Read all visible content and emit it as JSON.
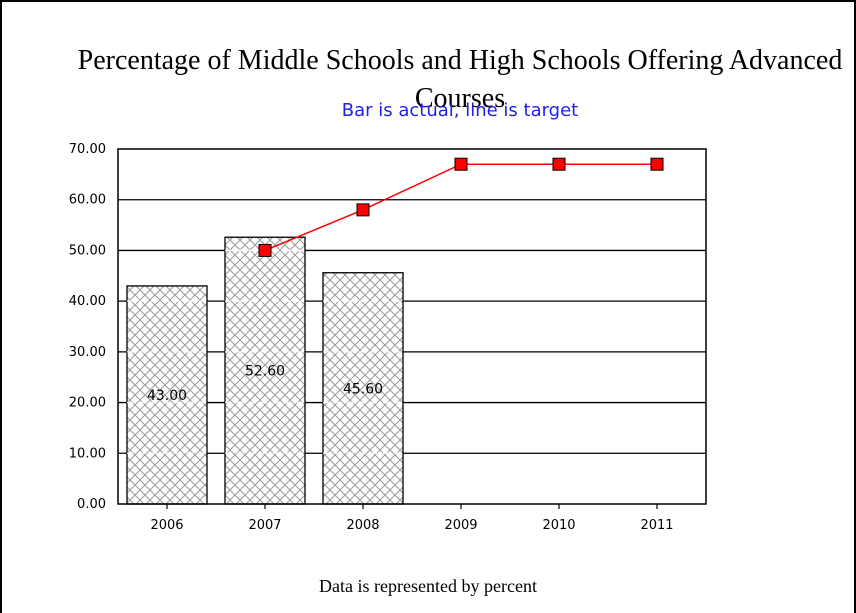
{
  "chart_data": {
    "type": "bar",
    "title": "Percentage of Middle Schools and High Schools Offering Advanced Courses",
    "subtitle": "Bar is actual, line is target",
    "footer": "Data is represented by percent",
    "categories": [
      "2006",
      "2007",
      "2008",
      "2009",
      "2010",
      "2011"
    ],
    "ylim": [
      0,
      70
    ],
    "y_ticks": [
      "0.00",
      "10.00",
      "20.00",
      "30.00",
      "40.00",
      "50.00",
      "60.00",
      "70.00"
    ],
    "series": [
      {
        "type": "bar",
        "values": [
          43.0,
          52.6,
          45.6,
          null,
          null,
          null
        ],
        "labels": [
          "43.00",
          "52.60",
          "45.60"
        ]
      },
      {
        "type": "line",
        "values": [
          null,
          50,
          58,
          67,
          67,
          67
        ],
        "color": "#ff0000"
      }
    ],
    "grid": true
  }
}
